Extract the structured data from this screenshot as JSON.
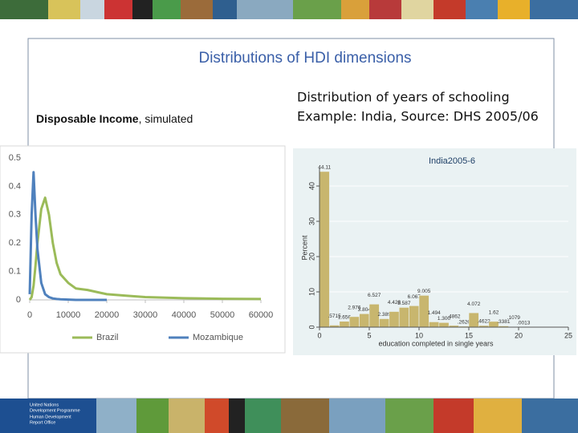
{
  "slide": {
    "title": "Distributions of HDI dimensions",
    "left_heading_bold": "Disposable Income",
    "left_heading_rest": ", simulated",
    "right_heading": [
      "Distribution of years of schooling",
      "Example: India, Source: DHS 2005/06"
    ],
    "footer_org": [
      "United Nations",
      "Development Programme",
      "Human Development",
      "Report Office"
    ]
  },
  "chart_data": [
    {
      "type": "line",
      "x": [
        0,
        500,
        1000,
        1500,
        2000,
        3000,
        4000,
        5000,
        6000,
        7000,
        8000,
        10000,
        12000,
        15000,
        20000,
        25000,
        30000,
        40000,
        50000,
        60000
      ],
      "series": [
        {
          "name": "Brazil",
          "color": "#9bbb59",
          "values": [
            0,
            0.01,
            0.05,
            0.12,
            0.2,
            0.32,
            0.36,
            0.3,
            0.2,
            0.13,
            0.09,
            0.06,
            0.04,
            0.035,
            0.02,
            0.015,
            0.01,
            0.006,
            0.004,
            0.003
          ]
        },
        {
          "name": "Mozambique",
          "color": "#4f81bd",
          "values": [
            0.02,
            0.3,
            0.45,
            0.3,
            0.18,
            0.06,
            0.02,
            0.01,
            0.005,
            0.003,
            0.002,
            0.001,
            0,
            0,
            0,
            null,
            null,
            null,
            null,
            null
          ]
        }
      ],
      "xlim": [
        0,
        60000
      ],
      "ylim": [
        0,
        0.5
      ],
      "xticks": [
        0,
        10000,
        20000,
        30000,
        40000,
        50000,
        60000
      ],
      "yticks": [
        0,
        0.1,
        0.2,
        0.3,
        0.4,
        0.5
      ],
      "grid": false,
      "legend": "bottom"
    },
    {
      "type": "histogram",
      "title": "India2005-6",
      "y_label": "Percent",
      "x_label": "education completed in single years",
      "bins": [
        0,
        1,
        2,
        3,
        4,
        5,
        6,
        7,
        8,
        9,
        10,
        11,
        12,
        13,
        14,
        15,
        16,
        17,
        18,
        19,
        20,
        21
      ],
      "values": [
        44.11,
        0.5715,
        1.656,
        2.976,
        3.804,
        6.527,
        2.389,
        4.428,
        5.587,
        6.067,
        9.005,
        1.494,
        1.3,
        0.4862,
        0.2626,
        4.072,
        0.4622,
        1.62,
        0.3381,
        0.1079,
        0.0013
      ],
      "value_labels": [
        "44.11",
        ".5715",
        "1.656",
        "2.976",
        "3.804",
        "6.527",
        "2.389",
        "4.428",
        "5.587",
        "6.067",
        "9.005",
        "1.494",
        "1.300",
        ".4862",
        ".2626",
        "4.072",
        ".4622",
        "1.62",
        ".3381",
        ".1079",
        ".0013"
      ],
      "color": "#c8b66e",
      "xlim": [
        0,
        25
      ],
      "ylim": [
        0,
        45
      ],
      "xticks": [
        0,
        5,
        10,
        15,
        20,
        25
      ],
      "yticks": [
        0,
        10,
        20,
        30,
        40
      ],
      "grid": true
    }
  ]
}
